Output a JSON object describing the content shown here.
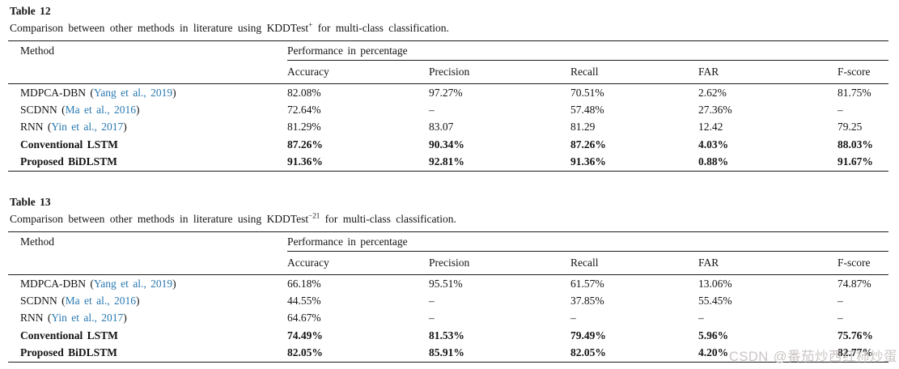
{
  "page": {
    "background": "#ffffff",
    "text_color": "#141414",
    "rule_color": "#1c1c1c",
    "citation_color": "#2878b0",
    "watermark_color": "#ccc4c4"
  },
  "watermark": {
    "text": "CSDN @番茄炒西红柿炒蛋"
  },
  "tables": [
    {
      "title": "Table 12",
      "caption": {
        "prefix": "Comparison between other methods in literature using ",
        "dataset": "KDDTest",
        "dataset_sup": "+",
        "suffix": " for multi-class classification."
      },
      "col_group_left": "Method",
      "col_group_right": "Performance in percentage",
      "columns": [
        "Accuracy",
        "Precision",
        "Recall",
        "FAR",
        "F-score"
      ],
      "rows": [
        {
          "method": "MDPCA-DBN (",
          "citation": "Yang et al., 2019",
          "method_close": ")",
          "bold": false,
          "values": [
            "82.08%",
            "97.27%",
            "70.51%",
            "2.62%",
            "81.75%"
          ]
        },
        {
          "method": "SCDNN (",
          "citation": "Ma et al., 2016",
          "method_close": ")",
          "bold": false,
          "values": [
            "72.64%",
            "–",
            "57.48%",
            "27.36%",
            "–"
          ]
        },
        {
          "method": "RNN (",
          "citation": "Yin et al., 2017",
          "method_close": ")",
          "bold": false,
          "values": [
            "81.29%",
            "83.07",
            "81.29",
            "12.42",
            "79.25"
          ]
        },
        {
          "method": "Conventional LSTM",
          "citation": "",
          "method_close": "",
          "bold": true,
          "values": [
            "87.26%",
            "90.34%",
            "87.26%",
            "4.03%",
            "88.03%"
          ]
        },
        {
          "method": "Proposed BiDLSTM",
          "citation": "",
          "method_close": "",
          "bold": true,
          "values": [
            "91.36%",
            "92.81%",
            "91.36%",
            "0.88%",
            "91.67%"
          ]
        }
      ]
    },
    {
      "title": "Table 13",
      "caption": {
        "prefix": "Comparison between other methods in literature using ",
        "dataset": "KDDTest",
        "dataset_sup": "−21",
        "suffix": " for multi-class classification."
      },
      "col_group_left": "Method",
      "col_group_right": "Performance in percentage",
      "columns": [
        "Accuracy",
        "Precision",
        "Recall",
        "FAR",
        "F-score"
      ],
      "rows": [
        {
          "method": "MDPCA-DBN (",
          "citation": "Yang et al., 2019",
          "method_close": ")",
          "bold": false,
          "values": [
            "66.18%",
            "95.51%",
            "61.57%",
            "13.06%",
            "74.87%"
          ]
        },
        {
          "method": "SCDNN (",
          "citation": "Ma et al., 2016",
          "method_close": ")",
          "bold": false,
          "values": [
            "44.55%",
            "–",
            "37.85%",
            "55.45%",
            "–"
          ]
        },
        {
          "method": "RNN (",
          "citation": "Yin et al., 2017",
          "method_close": ")",
          "bold": false,
          "values": [
            "64.67%",
            "–",
            "–",
            "–",
            "–"
          ]
        },
        {
          "method": "Conventional LSTM",
          "citation": "",
          "method_close": "",
          "bold": true,
          "values": [
            "74.49%",
            "81.53%",
            "79.49%",
            "5.96%",
            "75.76%"
          ]
        },
        {
          "method": "Proposed BiDLSTM",
          "citation": "",
          "method_close": "",
          "bold": true,
          "values": [
            "82.05%",
            "85.91%",
            "82.05%",
            "4.20%",
            "82.77%"
          ]
        }
      ]
    }
  ]
}
